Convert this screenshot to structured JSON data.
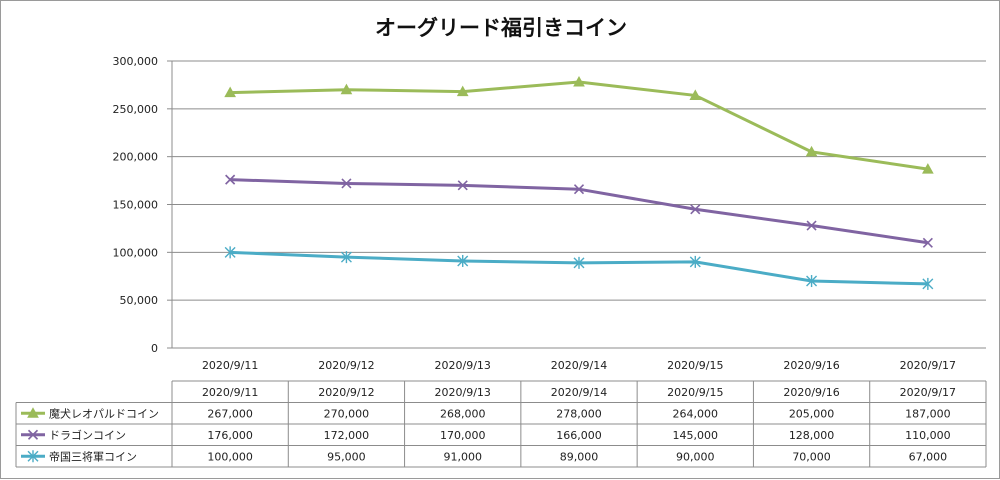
{
  "chart_data": {
    "type": "line",
    "title": "オーグリード福引きコイン",
    "xlabel": "",
    "ylabel": "",
    "categories": [
      "2020/9/11",
      "2020/9/12",
      "2020/9/13",
      "2020/9/14",
      "2020/9/15",
      "2020/9/16",
      "2020/9/17"
    ],
    "ylim": [
      0,
      300000
    ],
    "yticks": [
      0,
      50000,
      100000,
      150000,
      200000,
      250000,
      300000
    ],
    "ytick_labels": [
      "0",
      "50,000",
      "100,000",
      "150,000",
      "200,000",
      "250,000",
      "300,000"
    ],
    "grid": true,
    "legend": "data-table-left",
    "series": [
      {
        "name": "魔犬レオパルドコイン",
        "color": "#9BBB59",
        "marker": "triangle",
        "values": [
          267000,
          270000,
          268000,
          278000,
          264000,
          205000,
          187000
        ],
        "value_labels": [
          "267,000",
          "270,000",
          "268,000",
          "278,000",
          "264,000",
          "205,000",
          "187,000"
        ]
      },
      {
        "name": "ドラゴンコイン",
        "color": "#8064A2",
        "marker": "x",
        "values": [
          176000,
          172000,
          170000,
          166000,
          145000,
          128000,
          110000
        ],
        "value_labels": [
          "176,000",
          "172,000",
          "170,000",
          "166,000",
          "145,000",
          "128,000",
          "110,000"
        ]
      },
      {
        "name": "帝国三将軍コイン",
        "color": "#4BACC6",
        "marker": "star",
        "values": [
          100000,
          95000,
          91000,
          89000,
          90000,
          70000,
          67000
        ],
        "value_labels": [
          "100,000",
          "95,000",
          "91,000",
          "89,000",
          "90,000",
          "70,000",
          "67,000"
        ]
      }
    ]
  }
}
